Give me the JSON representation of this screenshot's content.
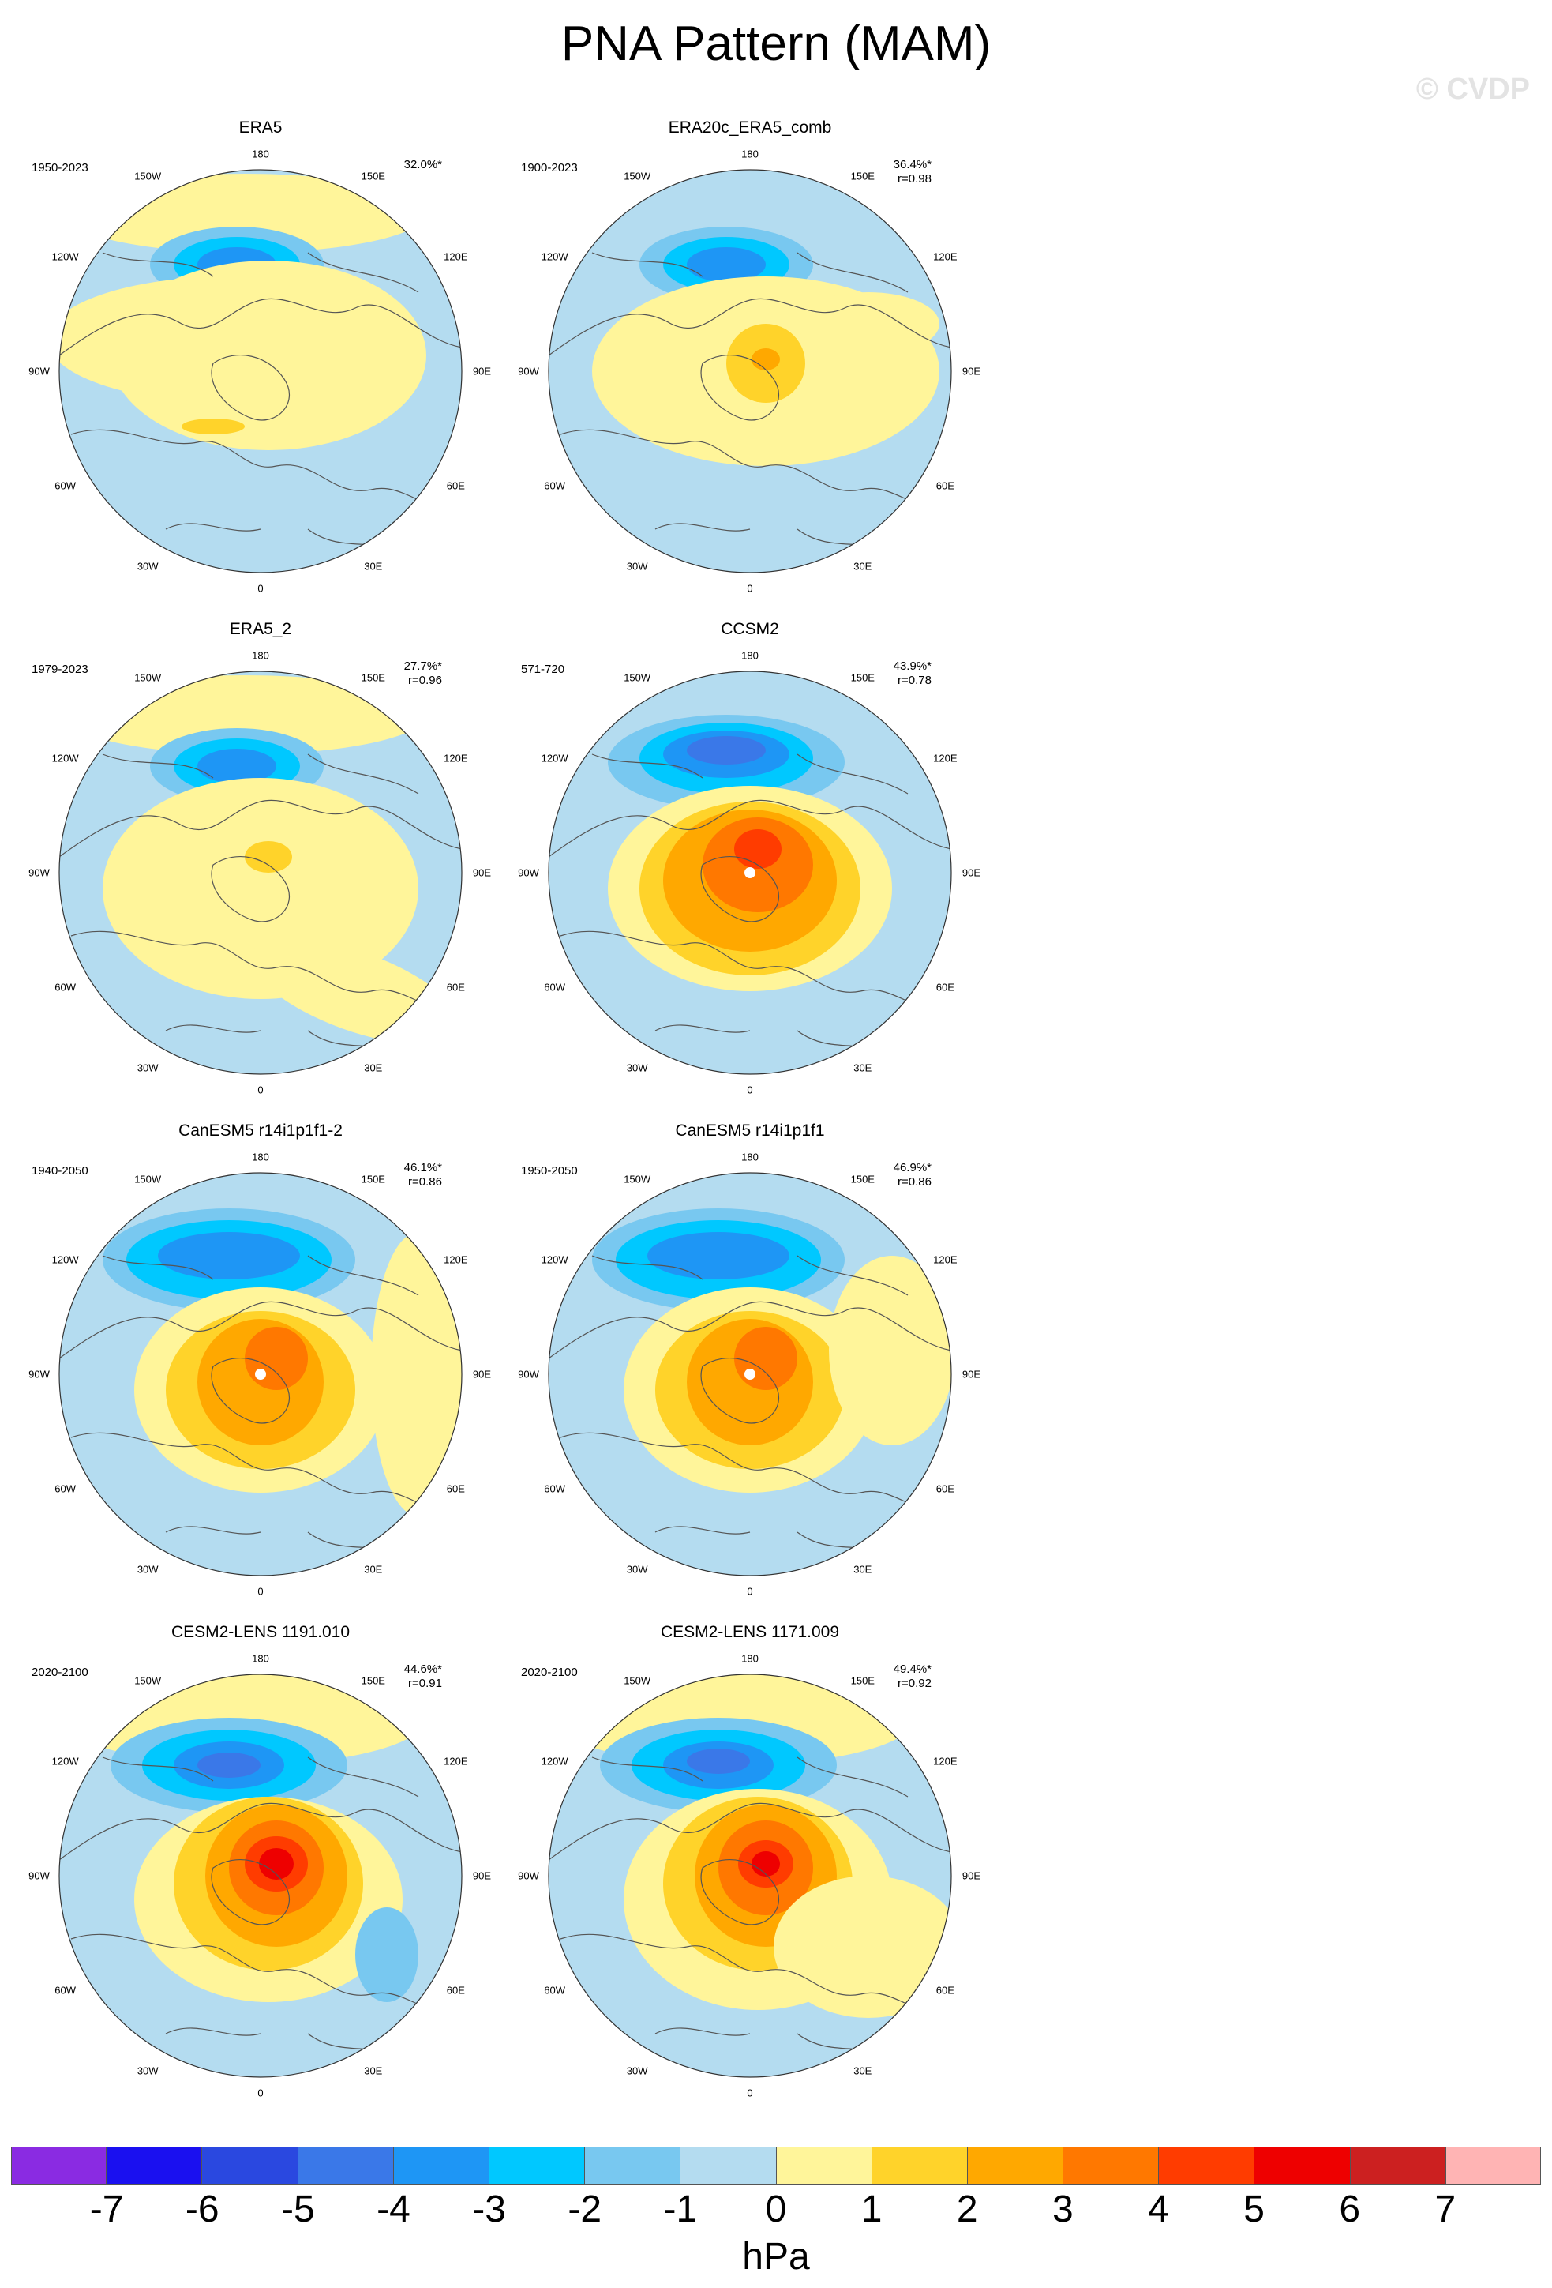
{
  "title": "PNA Pattern (MAM)",
  "copyright": "© CVDP",
  "longitude_labels": {
    "top": "180",
    "bottom": "0",
    "w150": "150W",
    "e150": "150E",
    "w120": "120W",
    "e120": "120E",
    "w90": "90W",
    "e90": "90E",
    "w60": "60W",
    "e60": "60E",
    "w30": "30W",
    "e30": "30E"
  },
  "panels": [
    {
      "title": "ERA5",
      "years": "1950-2023",
      "pct": "32.0%*",
      "r": ""
    },
    {
      "title": "ERA20c_ERA5_comb",
      "years": "1900-2023",
      "pct": "36.4%*",
      "r": "r=0.98"
    },
    {
      "title": "ERA5_2",
      "years": "1979-2023",
      "pct": "27.7%*",
      "r": "r=0.96"
    },
    {
      "title": "CCSM2",
      "years": "571-720",
      "pct": "43.9%*",
      "r": "r=0.78"
    },
    {
      "title": "CanESM5 r14i1p1f1-2",
      "years": "1940-2050",
      "pct": "46.1%*",
      "r": "r=0.86"
    },
    {
      "title": "CanESM5 r14i1p1f1",
      "years": "1950-2050",
      "pct": "46.9%*",
      "r": "r=0.86"
    },
    {
      "title": "CESM2-LENS 1191.010",
      "years": "2020-2100",
      "pct": "44.6%*",
      "r": "r=0.91"
    },
    {
      "title": "CESM2-LENS 1171.009",
      "years": "2020-2100",
      "pct": "49.4%*",
      "r": "r=0.92"
    }
  ],
  "colorbar": {
    "colors": [
      "#8a2be2",
      "#1a10f0",
      "#2a48e0",
      "#3a78e8",
      "#1e96f5",
      "#00c8ff",
      "#78c8f0",
      "#b4dcf0",
      "#fff59a",
      "#ffd32a",
      "#ffa800",
      "#ff7800",
      "#ff3c00",
      "#ee0000",
      "#cc2020",
      "#ffb4b4"
    ],
    "ticks": [
      "-7",
      "-6",
      "-5",
      "-4",
      "-3",
      "-2",
      "-1",
      "0",
      "1",
      "2",
      "3",
      "4",
      "5",
      "6",
      "7"
    ],
    "unit": "hPa"
  },
  "palette": {
    "ocean_neg1": "#b4dcf0",
    "pos1": "#fff59a",
    "pos2": "#ffd32a",
    "pos3": "#ffa800",
    "pos4": "#ff7800",
    "pos5": "#ff3c00",
    "pos6": "#ee0000",
    "neg2": "#78c8f0",
    "neg3": "#00c8ff",
    "neg4": "#1e96f5",
    "neg5": "#3a78e8",
    "neg6": "#2a48e0"
  }
}
